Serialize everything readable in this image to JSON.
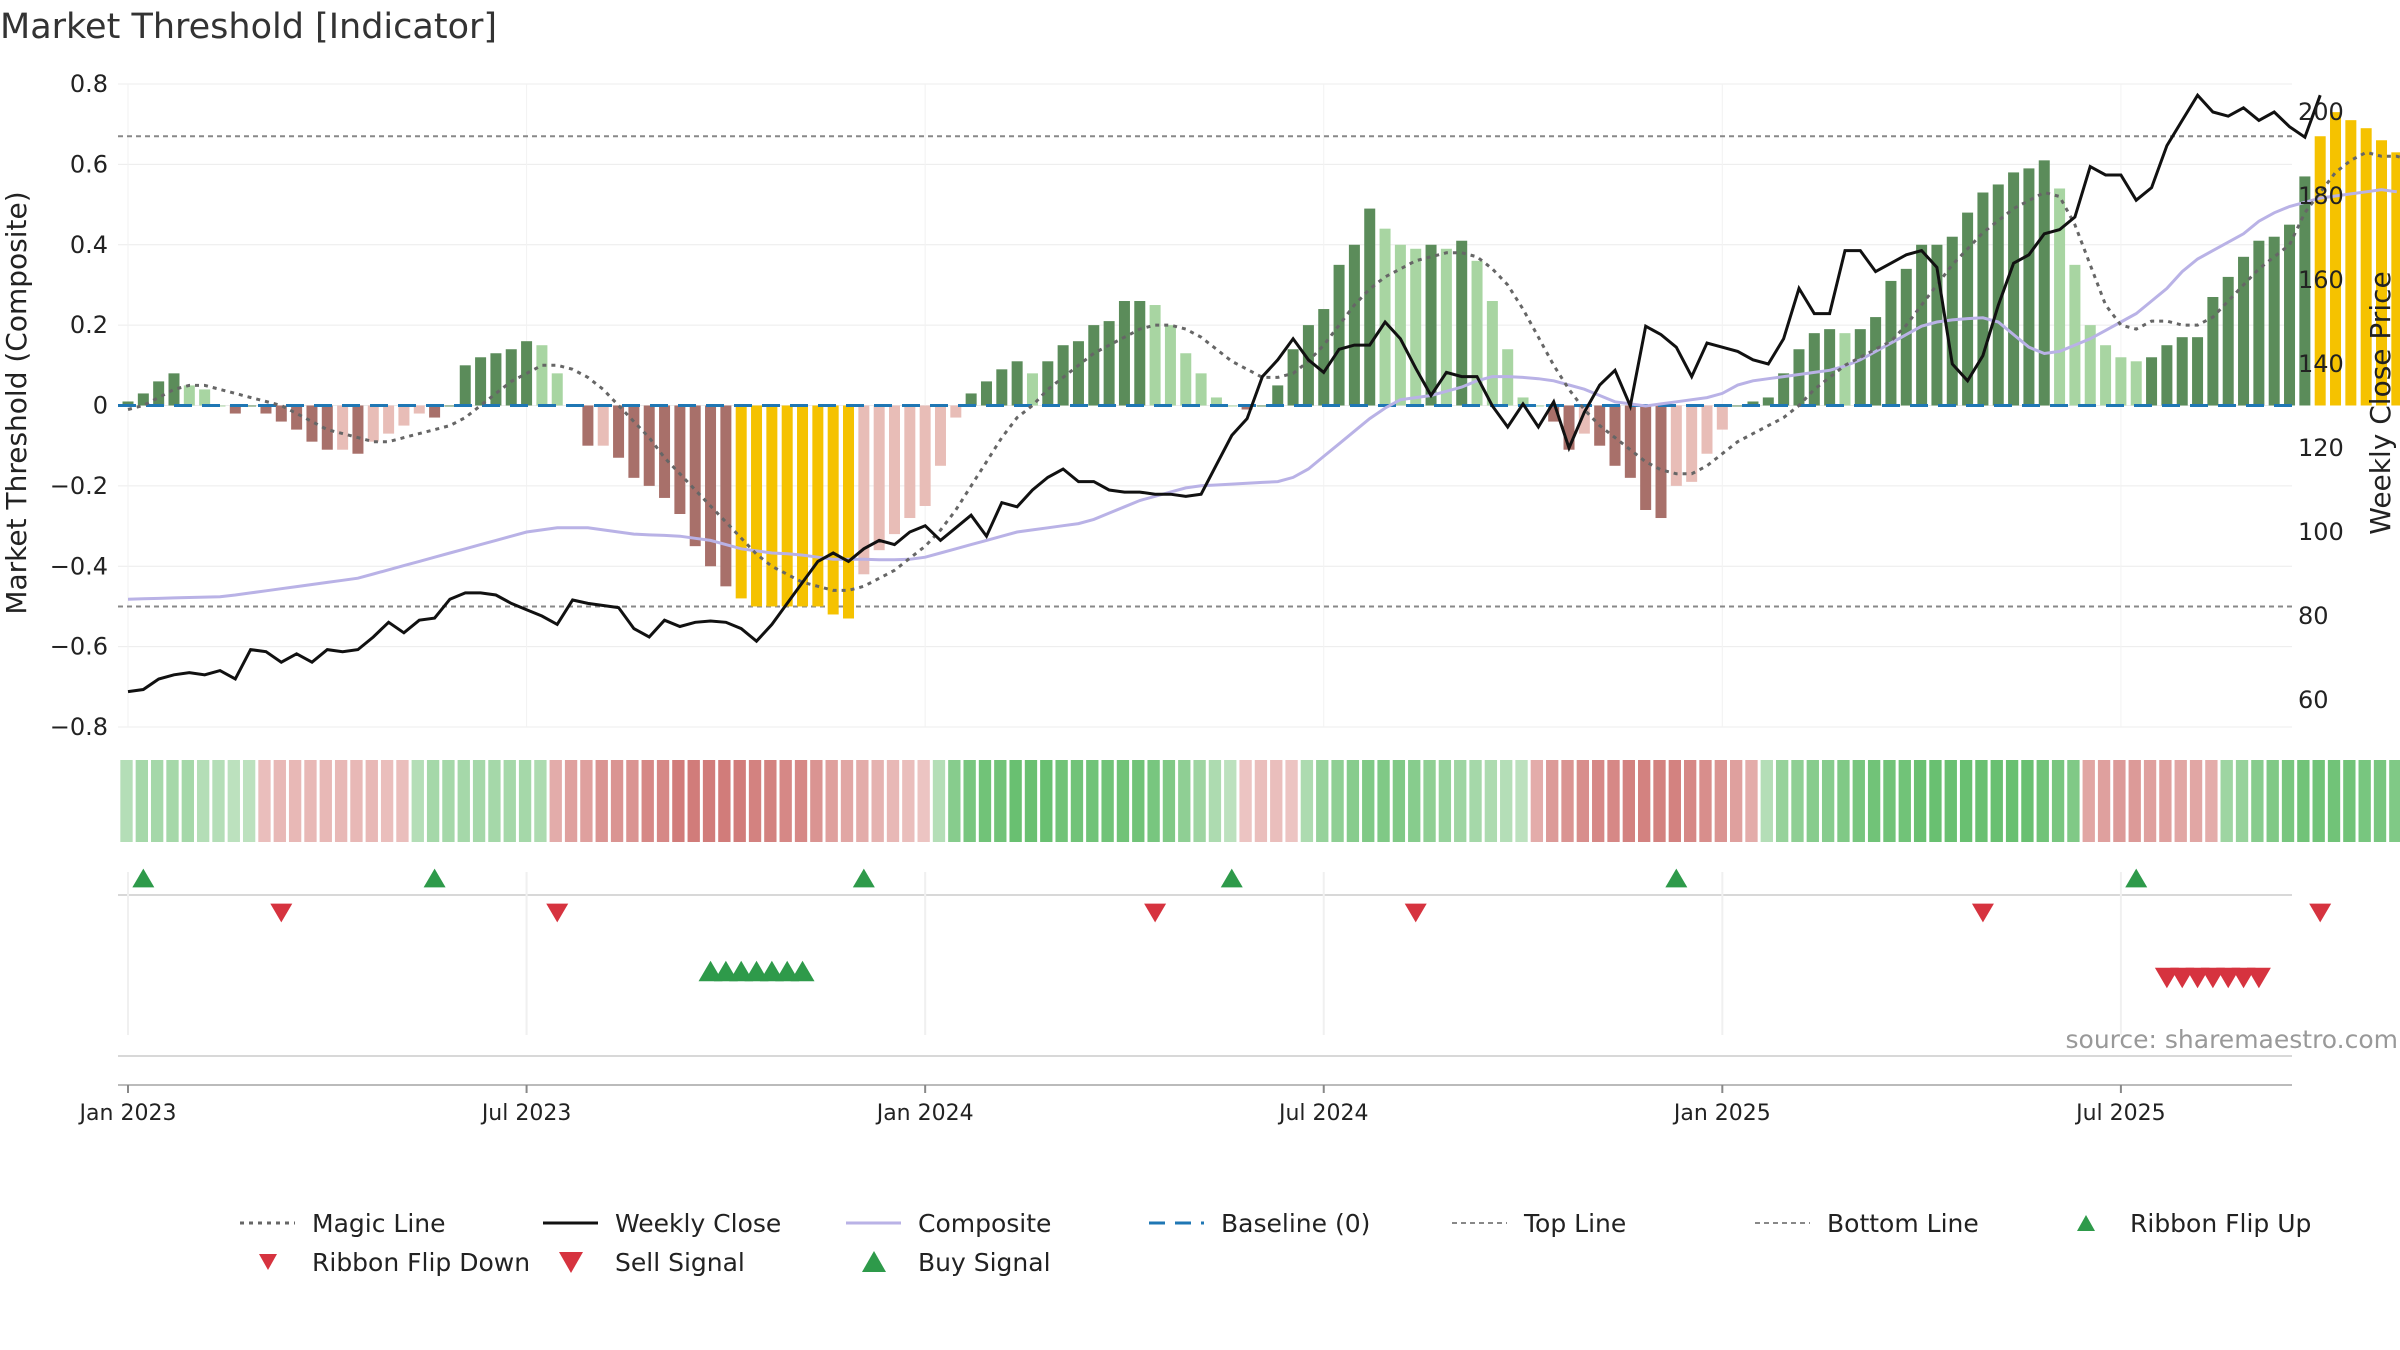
{
  "title": "Market Threshold [Indicator]",
  "source": "source: sharemaestro.com",
  "colors": {
    "magic_line": "#666666",
    "weekly_close": "#111111",
    "composite": "#b9b2e6",
    "baseline": "#1f77b4",
    "threshold_line": "#888888",
    "bar_pos_strong": "#5b8c5a",
    "bar_pos_weak": "#a8d5a2",
    "bar_neg_strong": "#a8706a",
    "bar_neg_weak": "#e8bdb7",
    "bar_extreme": "#f5c200",
    "buy": "#2e9a4a",
    "sell": "#d6333f"
  },
  "chart_data": {
    "type": "bar",
    "title": "Market Threshold [Indicator]",
    "ylabel": "Market Threshold (Composite)",
    "ylabel_right": "Weekly Close Price",
    "ylim": [
      -0.8,
      0.8
    ],
    "ylim_right": [
      50,
      205
    ],
    "yticks": [
      "0.8",
      "0.6",
      "0.4",
      "0.2",
      "0",
      "−0.2",
      "−0.4",
      "−0.6",
      "−0.8"
    ],
    "yticks_right": [
      "200",
      "180",
      "160",
      "140",
      "120",
      "100",
      "80",
      "60"
    ],
    "xticks": [
      "Jan 2023",
      "Jul 2023",
      "Jan 2024",
      "Jul 2024",
      "Jan 2025",
      "Jul 2025"
    ],
    "start_date": "2022-12-26",
    "top_line": 0.67,
    "bottom_line": -0.5,
    "baseline": 0,
    "composite_bars": [
      0.01,
      0.03,
      0.06,
      0.08,
      0.05,
      0.04,
      0.0,
      -0.02,
      0.0,
      -0.02,
      -0.04,
      -0.06,
      -0.09,
      -0.11,
      -0.11,
      -0.12,
      -0.09,
      -0.07,
      -0.05,
      -0.02,
      -0.03,
      0.0,
      0.1,
      0.12,
      0.13,
      0.14,
      0.16,
      0.15,
      0.08,
      0.0,
      -0.1,
      -0.1,
      -0.13,
      -0.18,
      -0.2,
      -0.23,
      -0.27,
      -0.35,
      -0.4,
      -0.45,
      -0.48,
      -0.5,
      -0.5,
      -0.5,
      -0.5,
      -0.5,
      -0.52,
      -0.53,
      -0.42,
      -0.36,
      -0.32,
      -0.28,
      -0.25,
      -0.15,
      -0.03,
      0.03,
      0.06,
      0.09,
      0.11,
      0.08,
      0.11,
      0.15,
      0.16,
      0.2,
      0.21,
      0.26,
      0.26,
      0.25,
      0.2,
      0.13,
      0.08,
      0.02,
      0.0,
      -0.01,
      0.0,
      0.05,
      0.14,
      0.2,
      0.24,
      0.35,
      0.4,
      0.49,
      0.44,
      0.4,
      0.39,
      0.4,
      0.39,
      0.41,
      0.36,
      0.26,
      0.14,
      0.02,
      0.0,
      -0.04,
      -0.11,
      -0.07,
      -0.1,
      -0.15,
      -0.18,
      -0.26,
      -0.28,
      -0.2,
      -0.19,
      -0.12,
      -0.06,
      0.0,
      0.01,
      0.02,
      0.08,
      0.14,
      0.18,
      0.19,
      0.18,
      0.19,
      0.22,
      0.31,
      0.34,
      0.4,
      0.4,
      0.42,
      0.48,
      0.53,
      0.55,
      0.58,
      0.59,
      0.61,
      0.54,
      0.35,
      0.2,
      0.15,
      0.12,
      0.11,
      0.12,
      0.15,
      0.17,
      0.17,
      0.27,
      0.32,
      0.37,
      0.41,
      0.42,
      0.45,
      0.57,
      0.67,
      0.73,
      0.71,
      0.69,
      0.66,
      0.63,
      0.61,
      0.56,
      0.44,
      0.42
    ],
    "magic_line": [
      -0.01,
      0.0,
      0.02,
      0.04,
      0.05,
      0.05,
      0.04,
      0.03,
      0.02,
      0.01,
      0.0,
      -0.02,
      -0.04,
      -0.06,
      -0.07,
      -0.08,
      -0.09,
      -0.09,
      -0.08,
      -0.07,
      -0.06,
      -0.05,
      -0.03,
      0.0,
      0.03,
      0.06,
      0.08,
      0.1,
      0.1,
      0.09,
      0.07,
      0.04,
      0.0,
      -0.04,
      -0.08,
      -0.13,
      -0.17,
      -0.21,
      -0.25,
      -0.29,
      -0.33,
      -0.37,
      -0.4,
      -0.42,
      -0.44,
      -0.45,
      -0.46,
      -0.46,
      -0.45,
      -0.43,
      -0.41,
      -0.38,
      -0.35,
      -0.31,
      -0.26,
      -0.2,
      -0.14,
      -0.08,
      -0.03,
      0.0,
      0.04,
      0.07,
      0.1,
      0.13,
      0.15,
      0.17,
      0.19,
      0.2,
      0.2,
      0.19,
      0.17,
      0.14,
      0.11,
      0.09,
      0.07,
      0.07,
      0.08,
      0.11,
      0.15,
      0.2,
      0.25,
      0.29,
      0.32,
      0.34,
      0.36,
      0.37,
      0.38,
      0.38,
      0.37,
      0.34,
      0.3,
      0.24,
      0.17,
      0.1,
      0.04,
      -0.01,
      -0.05,
      -0.08,
      -0.11,
      -0.14,
      -0.16,
      -0.17,
      -0.17,
      -0.15,
      -0.12,
      -0.09,
      -0.07,
      -0.05,
      -0.03,
      0.0,
      0.04,
      0.07,
      0.1,
      0.12,
      0.14,
      0.16,
      0.2,
      0.25,
      0.3,
      0.35,
      0.39,
      0.43,
      0.46,
      0.49,
      0.51,
      0.53,
      0.52,
      0.45,
      0.35,
      0.25,
      0.2,
      0.19,
      0.21,
      0.21,
      0.2,
      0.2,
      0.22,
      0.26,
      0.3,
      0.34,
      0.37,
      0.4,
      0.48,
      0.53,
      0.58,
      0.61,
      0.63,
      0.62,
      0.62,
      0.61,
      0.6,
      0.57,
      0.55
    ],
    "composite_line": [
      84,
      84.1,
      84.2,
      84.3,
      84.4,
      84.5,
      84.6,
      85,
      85.5,
      86,
      86.5,
      87,
      87.5,
      88,
      88.5,
      89,
      90,
      91,
      92,
      93,
      94,
      95,
      96,
      97,
      98,
      99,
      100,
      100.5,
      101,
      101,
      101,
      100.5,
      100,
      99.5,
      99.3,
      99.2,
      99,
      98.5,
      98,
      97,
      96,
      95.5,
      95,
      94.8,
      94.5,
      94,
      93.5,
      93.5,
      93.5,
      93.4,
      93.4,
      93.5,
      94,
      95,
      96,
      97,
      98,
      99,
      100,
      100.5,
      101,
      101.5,
      102,
      103,
      104.5,
      106,
      107.5,
      108.5,
      109.5,
      110.5,
      111,
      111.2,
      111.4,
      111.6,
      111.8,
      112,
      113,
      115,
      118,
      121,
      124,
      127,
      129.5,
      131.5,
      132,
      132.5,
      133.5,
      134.5,
      136,
      137,
      137,
      136.8,
      136.5,
      136,
      135,
      134,
      132.5,
      131,
      130.5,
      130,
      130.5,
      131,
      131.5,
      132,
      133,
      135,
      136,
      136.5,
      137,
      137.5,
      138,
      138.5,
      139.5,
      141,
      143,
      145,
      147,
      149,
      150,
      150.5,
      150.8,
      151,
      150,
      147,
      144,
      142.5,
      143,
      144.5,
      146,
      148,
      150,
      152,
      155,
      158,
      162,
      165,
      167,
      169,
      171,
      174,
      176,
      177.5,
      178.5,
      179.5,
      180,
      180.5,
      181,
      181.5,
      181
    ],
    "weekly_close": [
      62,
      62.5,
      65,
      66,
      66.5,
      66,
      67,
      65,
      72,
      71.5,
      69,
      71,
      69,
      72,
      71.5,
      72,
      75,
      78.5,
      76,
      79,
      79.5,
      84,
      85.5,
      85.5,
      85,
      83,
      81.5,
      80,
      78,
      83.8,
      83,
      82.5,
      82,
      77,
      75,
      79,
      77.5,
      78.5,
      78.8,
      78.5,
      77,
      74,
      78,
      83,
      88,
      93,
      95,
      93,
      96,
      98,
      97,
      100,
      101.5,
      98,
      101,
      104,
      99,
      107,
      106,
      110,
      113,
      115,
      112,
      112,
      110,
      109.5,
      109.5,
      109,
      109,
      108.5,
      109,
      116,
      123,
      127,
      137,
      141,
      146,
      141,
      138,
      143.5,
      144.5,
      144.5,
      150,
      146,
      139,
      132.5,
      138,
      137,
      137,
      130,
      125,
      130.5,
      125,
      131,
      120,
      128.5,
      135,
      138.5,
      130,
      149,
      147,
      144,
      137,
      145,
      144,
      143,
      141,
      140,
      146,
      158,
      152,
      152,
      167,
      167,
      162,
      164,
      166,
      167,
      163,
      140,
      136,
      142,
      154,
      164,
      166,
      171,
      172,
      175,
      187,
      185,
      185,
      179,
      182,
      192,
      198,
      204,
      200,
      199,
      201,
      198,
      200,
      196.5,
      194,
      204
    ],
    "ribbon_intensity": [
      0.3,
      0.4,
      0.4,
      0.4,
      0.4,
      0.3,
      0.3,
      0.25,
      0.25,
      -0.25,
      -0.3,
      -0.3,
      -0.3,
      -0.3,
      -0.3,
      -0.3,
      -0.3,
      -0.25,
      -0.25,
      0.3,
      0.4,
      0.4,
      0.4,
      0.4,
      0.4,
      0.4,
      0.4,
      0.35,
      -0.4,
      -0.5,
      -0.5,
      -0.6,
      -0.6,
      -0.6,
      -0.7,
      -0.7,
      -0.8,
      -0.8,
      -0.8,
      -0.8,
      -0.8,
      -0.75,
      -0.75,
      -0.7,
      -0.7,
      -0.6,
      -0.5,
      -0.45,
      -0.4,
      -0.35,
      -0.3,
      -0.25,
      -0.2,
      0.3,
      0.6,
      0.7,
      0.75,
      0.75,
      0.8,
      0.8,
      0.8,
      0.75,
      0.75,
      0.75,
      0.75,
      0.75,
      0.75,
      0.7,
      0.65,
      0.55,
      0.45,
      0.35,
      0.25,
      -0.2,
      -0.25,
      -0.25,
      -0.2,
      0.35,
      0.5,
      0.55,
      0.6,
      0.65,
      0.65,
      0.65,
      0.6,
      0.55,
      0.5,
      0.45,
      0.4,
      0.35,
      0.3,
      0.25,
      -0.4,
      -0.55,
      -0.6,
      -0.65,
      -0.7,
      -0.7,
      -0.75,
      -0.75,
      -0.75,
      -0.75,
      -0.7,
      -0.65,
      -0.6,
      -0.5,
      -0.4,
      0.3,
      0.5,
      0.55,
      0.6,
      0.6,
      0.65,
      0.7,
      0.75,
      0.75,
      0.75,
      0.8,
      0.8,
      0.8,
      0.8,
      0.8,
      0.8,
      0.8,
      0.8,
      0.75,
      0.7,
      0.65,
      -0.45,
      -0.5,
      -0.55,
      -0.55,
      -0.5,
      -0.5,
      -0.45,
      -0.45,
      -0.4,
      0.45,
      0.5,
      0.6,
      0.65,
      0.7,
      0.75,
      0.75,
      0.75,
      0.75,
      0.7,
      0.7,
      0.65,
      0.55,
      0.45,
      0.35,
      -0.25
    ],
    "ribbon_flip_up": [
      1,
      20,
      48,
      72,
      101,
      131
    ],
    "ribbon_flip_down": [
      10,
      28,
      67,
      84,
      121,
      143
    ],
    "buy_signal": [
      38,
      39,
      40,
      41,
      42,
      43,
      44
    ],
    "sell_signal": [
      133,
      134,
      135,
      136,
      137,
      138,
      139
    ],
    "legend": [
      {
        "key": "magic",
        "label": "Magic Line"
      },
      {
        "key": "close",
        "label": "Weekly Close"
      },
      {
        "key": "composite",
        "label": "Composite"
      },
      {
        "key": "baseline",
        "label": "Baseline (0)"
      },
      {
        "key": "top",
        "label": "Top Line"
      },
      {
        "key": "bottom",
        "label": "Bottom Line"
      },
      {
        "key": "flipup",
        "label": "Ribbon Flip Up"
      },
      {
        "key": "flipdown",
        "label": "Ribbon Flip Down"
      },
      {
        "key": "sell",
        "label": "Sell Signal"
      },
      {
        "key": "buy",
        "label": "Buy Signal"
      }
    ]
  }
}
